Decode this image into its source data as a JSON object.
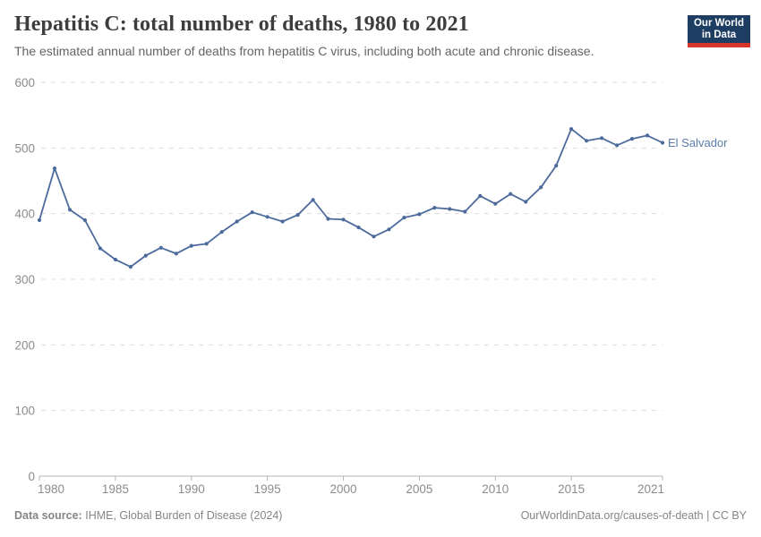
{
  "header": {
    "title": "Hepatitis C: total number of deaths, 1980 to 2021",
    "subtitle": "The estimated annual number of deaths from hepatitis C virus, including both acute and chronic disease."
  },
  "logo": {
    "line1": "Our World",
    "line2": "in Data",
    "bg_color": "#1d3d63",
    "bar_color": "#d8352a"
  },
  "chart_data": {
    "type": "line",
    "title": "Hepatitis C: total number of deaths, 1980 to 2021",
    "entity_label": "El Salvador",
    "x": [
      1980,
      1981,
      1982,
      1983,
      1984,
      1985,
      1986,
      1987,
      1988,
      1989,
      1990,
      1991,
      1992,
      1993,
      1994,
      1995,
      1996,
      1997,
      1998,
      1999,
      2000,
      2001,
      2002,
      2003,
      2004,
      2005,
      2006,
      2007,
      2008,
      2009,
      2010,
      2011,
      2012,
      2013,
      2014,
      2015,
      2016,
      2017,
      2018,
      2019,
      2020,
      2021
    ],
    "values": [
      390,
      469,
      406,
      390,
      347,
      330,
      319,
      336,
      348,
      339,
      351,
      354,
      372,
      388,
      402,
      395,
      388,
      398,
      421,
      392,
      391,
      379,
      365,
      376,
      394,
      399,
      409,
      407,
      403,
      427,
      415,
      430,
      418,
      440,
      473,
      529,
      511,
      515,
      504,
      514,
      519,
      508
    ],
    "x_ticks": [
      1980,
      1985,
      1990,
      1995,
      2000,
      2005,
      2010,
      2015,
      2021
    ],
    "y_ticks": [
      0,
      100,
      200,
      300,
      400,
      500,
      600
    ],
    "xlim": [
      1980,
      2021
    ],
    "ylim": [
      0,
      600
    ],
    "xlabel": "",
    "ylabel": "",
    "grid": true,
    "legend_position": "right-of-line-end",
    "line_color": "#4c6a9c",
    "entity_label_color": "#5b7bac",
    "grid_color": "#dddddd",
    "axis_color": "#b5b5b5",
    "tick_label_color": "#8c8c8c"
  },
  "footer": {
    "datasource_label": "Data source:",
    "datasource_text": "IHME, Global Burden of Disease (2024)",
    "credit": "OurWorldinData.org/causes-of-death | CC BY"
  }
}
